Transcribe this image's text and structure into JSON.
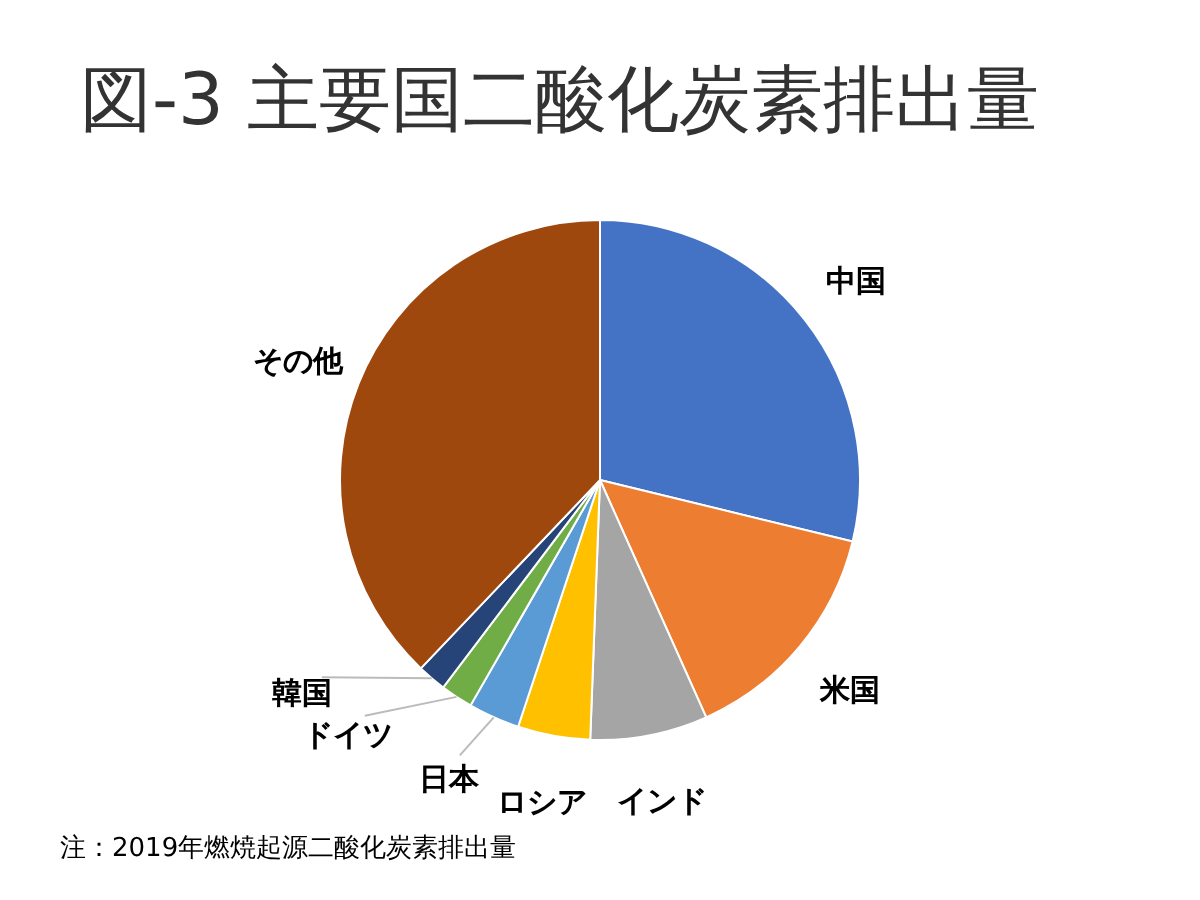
{
  "chart_data": {
    "type": "pie",
    "title": "図-3 主要国二酸化炭素排出量",
    "categories": [
      "中国",
      "米国",
      "インド",
      "ロシア",
      "日本",
      "ドイツ",
      "韓国",
      "その他"
    ],
    "values": [
      28.8,
      14.5,
      7.3,
      4.5,
      3.2,
      2.0,
      1.8,
      37.9
    ],
    "colors": [
      "#4472c4",
      "#ed7d31",
      "#a5a5a5",
      "#ffc000",
      "#5b9bd5",
      "#70ad47",
      "#264478",
      "#9e480e"
    ],
    "annotations": [
      "注：2019年燃焼起源二酸化炭素排出量"
    ]
  }
}
